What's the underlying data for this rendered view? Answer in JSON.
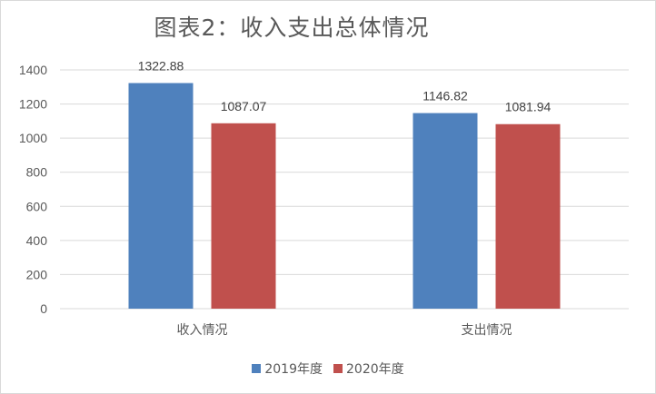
{
  "chart_data": {
    "type": "bar",
    "title": "图表2：收入支出总体情况",
    "categories": [
      "收入情况",
      "支出情况"
    ],
    "series": [
      {
        "name": "2019年度",
        "color": "#4f81bd",
        "values": [
          1322.88,
          1146.82
        ],
        "labels": [
          "1322.88",
          "1146.82"
        ]
      },
      {
        "name": "2020年度",
        "color": "#c0504d",
        "values": [
          1087.07,
          1081.94
        ],
        "labels": [
          "1087.07",
          "1081.94"
        ]
      }
    ],
    "yticks": [
      "0",
      "200",
      "400",
      "600",
      "800",
      "1000",
      "1200",
      "1400"
    ],
    "ylim": [
      0,
      1400
    ],
    "grid": true,
    "legend_position": "bottom"
  }
}
